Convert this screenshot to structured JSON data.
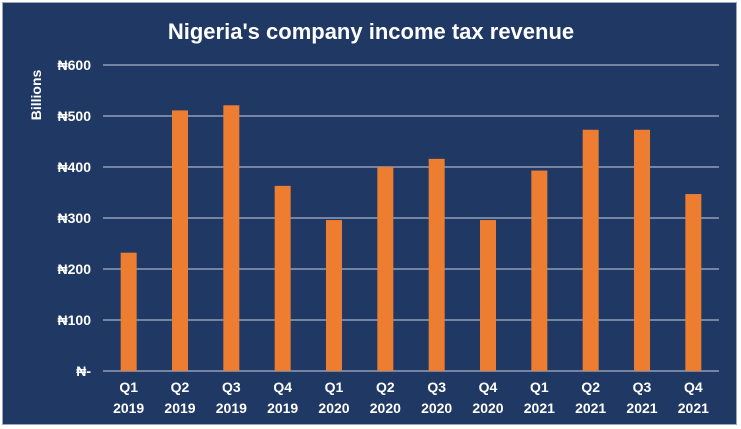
{
  "chart_data": {
    "type": "bar",
    "title": "Nigeria's company income tax revenue",
    "xlabel": "",
    "ylabel": "Billions",
    "ylim": [
      0,
      600
    ],
    "y_ticks": [
      {
        "value": 0,
        "label": "₦-"
      },
      {
        "value": 100,
        "label": "₦100"
      },
      {
        "value": 200,
        "label": "₦200"
      },
      {
        "value": 300,
        "label": "₦300"
      },
      {
        "value": 400,
        "label": "₦400"
      },
      {
        "value": 500,
        "label": "₦500"
      },
      {
        "value": 600,
        "label": "₦600"
      }
    ],
    "categories": [
      {
        "quarter": "Q1",
        "year": "2019"
      },
      {
        "quarter": "Q2",
        "year": "2019"
      },
      {
        "quarter": "Q3",
        "year": "2019"
      },
      {
        "quarter": "Q4",
        "year": "2019"
      },
      {
        "quarter": "Q1",
        "year": "2020"
      },
      {
        "quarter": "Q2",
        "year": "2020"
      },
      {
        "quarter": "Q3",
        "year": "2020"
      },
      {
        "quarter": "Q4",
        "year": "2020"
      },
      {
        "quarter": "Q1",
        "year": "2021"
      },
      {
        "quarter": "Q2",
        "year": "2021"
      },
      {
        "quarter": "Q3",
        "year": "2021"
      },
      {
        "quarter": "Q4",
        "year": "2021"
      }
    ],
    "values": [
      232,
      511,
      521,
      363,
      296,
      400,
      416,
      296,
      393,
      473,
      473,
      347
    ],
    "grid": true,
    "legend": "none",
    "colors": {
      "background": "#1f3864",
      "bar": "#ed7d31",
      "text": "#ffffff",
      "grid": "#c9d1de"
    }
  }
}
